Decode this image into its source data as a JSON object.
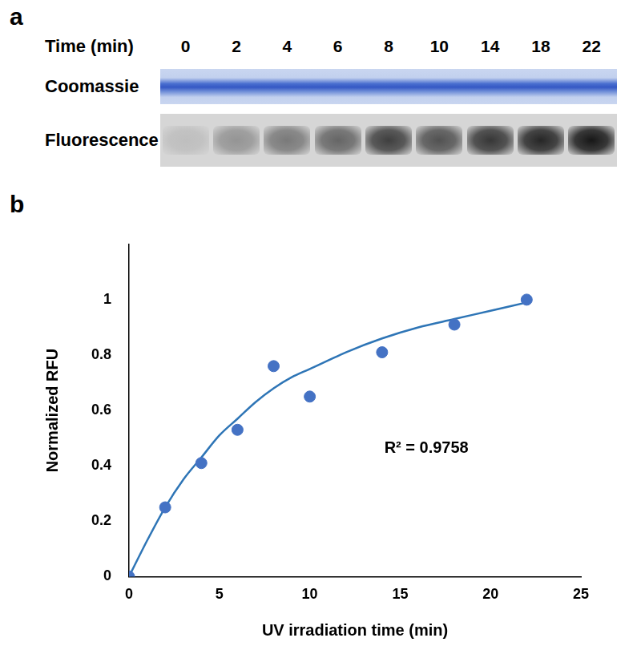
{
  "gel": {
    "label": "a",
    "header": "Time (min)",
    "times": [
      0,
      2,
      4,
      6,
      8,
      10,
      14,
      18,
      22
    ],
    "rows": [
      "Coomassie",
      "Fluorescence"
    ]
  },
  "chart_data": {
    "label": "b",
    "type": "scatter",
    "x_label": "UV irradiation time (min)",
    "y_label": "Normalized RFU",
    "annotation": "R² = 0.9758",
    "series": [
      {
        "type": "scatter",
        "color": "#4472c4",
        "marker": "circle",
        "x": [
          0,
          2,
          4,
          6,
          8,
          10,
          14,
          18,
          22
        ],
        "values": [
          0,
          0.25,
          0.41,
          0.53,
          0.76,
          0.65,
          0.81,
          0.91,
          1.0
        ]
      },
      {
        "type": "line",
        "color": "#2e75b6",
        "line_style": "solid",
        "x": [
          0,
          1,
          2,
          3,
          4,
          5,
          6,
          7,
          8,
          9,
          10,
          11,
          12,
          14,
          16,
          18,
          20,
          22
        ],
        "values": [
          0,
          0.13,
          0.25,
          0.35,
          0.43,
          0.51,
          0.57,
          0.63,
          0.68,
          0.72,
          0.75,
          0.78,
          0.81,
          0.86,
          0.9,
          0.93,
          0.96,
          0.99
        ]
      }
    ],
    "xlim": [
      0,
      25
    ],
    "xticks": [
      0,
      5,
      10,
      15,
      20,
      25
    ],
    "ylim": [
      0,
      1.2
    ],
    "yticks": [
      0,
      0.2,
      0.4,
      0.6,
      0.8,
      1
    ],
    "grid": false
  }
}
